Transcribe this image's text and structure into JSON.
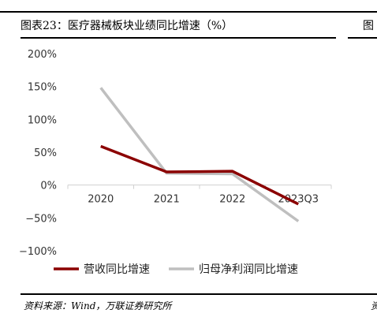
{
  "header": {
    "title": "图表23：医疗器械板块业绩同比增速（%）",
    "cut_char": "图"
  },
  "footer": {
    "source": "资料来源：Wind，万联证券研究所",
    "cut_char": "资"
  },
  "colors": {
    "series1": "#8B0000",
    "series2": "#BFBFBF",
    "axis": "#D0D0D0",
    "text": "#333333"
  },
  "chart_data": {
    "type": "line",
    "categories": [
      "2020",
      "2021",
      "2022",
      "2023Q3"
    ],
    "ylim": [
      -100,
      200
    ],
    "yticks": [
      -100,
      -50,
      0,
      50,
      100,
      150,
      200
    ],
    "ytick_labels": [
      "−100%",
      "−50%",
      "0%",
      "50%",
      "100%",
      "150%",
      "200%"
    ],
    "grid": false,
    "legend": "bottom",
    "series": [
      {
        "name": "营收同比增速",
        "color": "#8B0000",
        "values": [
          59,
          20,
          21,
          -29
        ]
      },
      {
        "name": "归母净利润同比增速",
        "color": "#BFBFBF",
        "values": [
          148,
          18,
          17,
          -55
        ]
      }
    ]
  }
}
